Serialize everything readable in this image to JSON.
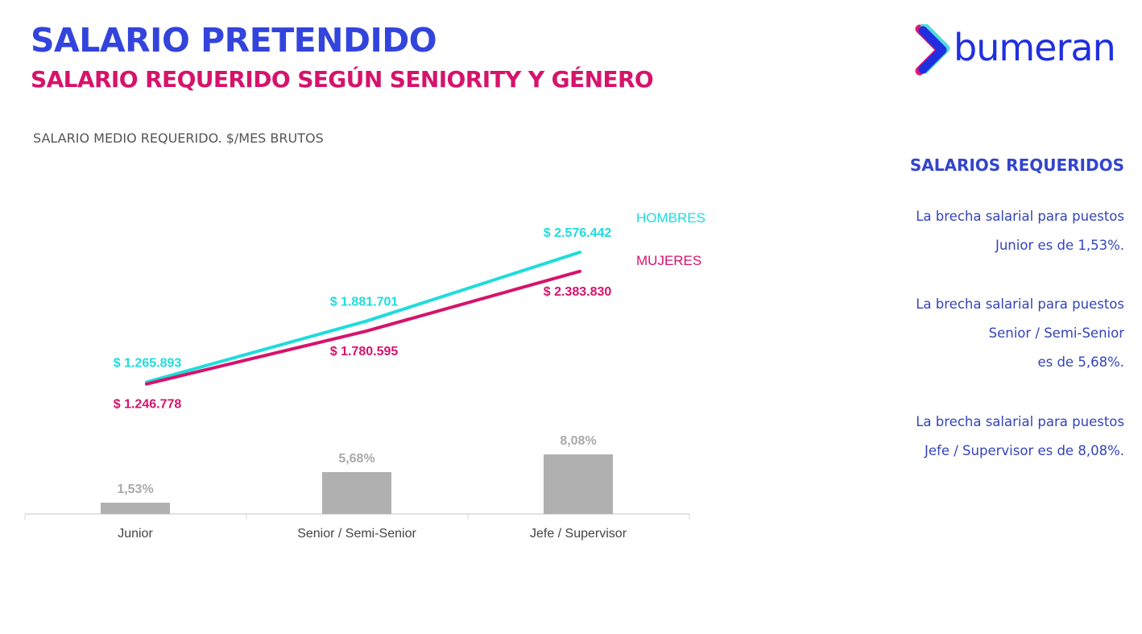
{
  "header": {
    "title": "SALARIO PRETENDIDO",
    "subtitle": "SALARIO REQUERIDO SEGÚN SENIORITY Y GÉNERO",
    "logo_text": "bumeran"
  },
  "colors": {
    "hombres": "#1edcdc",
    "mujeres": "#d6136b",
    "bars": "#b0b0b0",
    "title": "#3344dd"
  },
  "chart_data": {
    "type": "line",
    "title": "SALARIO MEDIO REQUERIDO. $/MES BRUTOS",
    "categories": [
      "Junior",
      "Senior / Semi-Senior",
      "Jefe / Supervisor"
    ],
    "series": [
      {
        "name": "HOMBRES",
        "values": [
          1265893,
          1881701,
          2576442
        ],
        "labels": [
          "$ 1.265.893",
          "$ 1.881.701",
          "$ 2.576.442"
        ]
      },
      {
        "name": "MUJERES",
        "values": [
          1246778,
          1780595,
          2383830
        ],
        "labels": [
          "$ 1.246.778",
          "$ 1.780.595",
          "$ 2.383.830"
        ]
      }
    ],
    "bars": {
      "type": "bar",
      "values": [
        1.53,
        5.68,
        8.08
      ],
      "labels": [
        "1,53%",
        "5,68%",
        "8,08%"
      ]
    },
    "grid": false
  },
  "sidebar": {
    "title": "SALARIOS REQUERIDOS",
    "paragraphs": [
      [
        "La brecha salarial para puestos",
        "Junior es de 1,53%."
      ],
      [
        "La brecha salarial para puestos",
        "Senior / Semi-Senior",
        "es de 5,68%."
      ],
      [
        "La brecha salarial para puestos",
        "Jefe / Supervisor es de 8,08%."
      ]
    ]
  }
}
